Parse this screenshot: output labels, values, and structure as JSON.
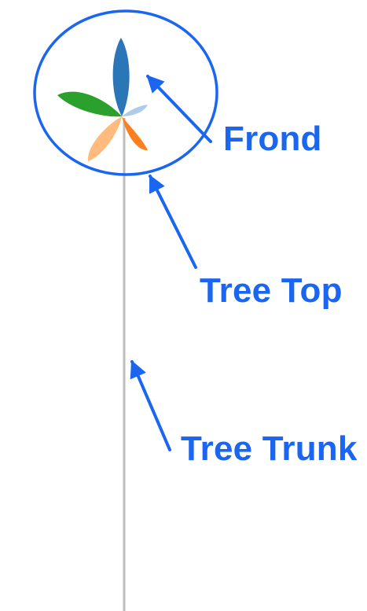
{
  "labels": {
    "frond": "Frond",
    "tree_top": "Tree Top",
    "tree_trunk": "Tree Trunk"
  },
  "colors": {
    "annotation": "#1a66f0",
    "trunk": "#bdbdbd",
    "frond_blue": "#2a76b6",
    "frond_light_blue": "#aecbe8",
    "frond_orange": "#ff7f1e",
    "frond_peach": "#ffbb7d",
    "frond_green": "#2ca02c",
    "background": "#ffffff"
  },
  "icons": {
    "arrow": "arrow-icon",
    "circle": "tree-top-circle"
  }
}
